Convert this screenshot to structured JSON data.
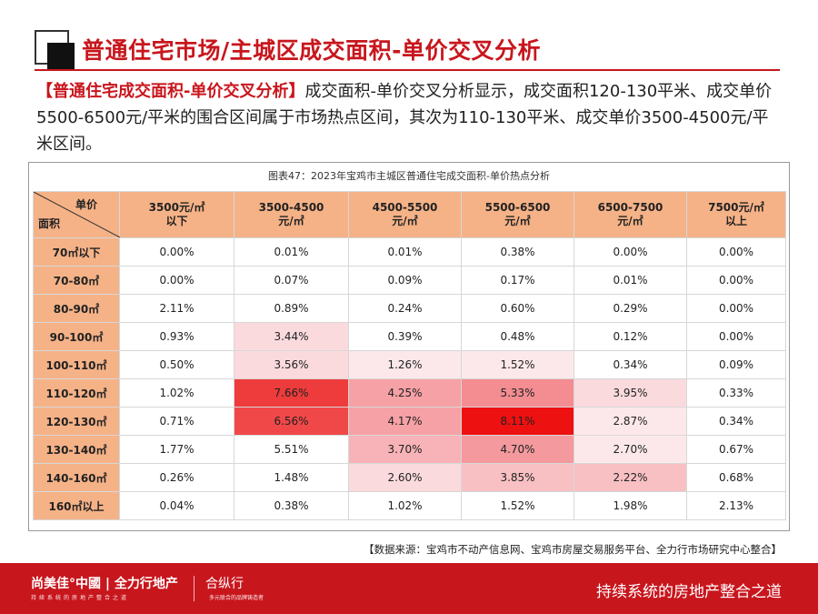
{
  "header": {
    "title": "普通住宅市场/主城区成交面积-单价交叉分析"
  },
  "intro": {
    "tag": "【普通住宅成交面积-单价交叉分析】",
    "text": "成交面积-单价交叉分析显示，成交面积120-130平米、成交单价5500-6500元/平米的围合区间属于市场热点区间，其次为110-130平米、成交单价3500-4500元/平米区间。"
  },
  "table": {
    "caption": "图表47：2023年宝鸡市主城区普通住宅成交面积-单价热点分析",
    "corner_top": "单价",
    "corner_bottom": "面积",
    "columns": [
      [
        "3500元/㎡",
        "以下"
      ],
      [
        "3500-4500",
        "元/㎡"
      ],
      [
        "4500-5500",
        "元/㎡"
      ],
      [
        "5500-6500",
        "元/㎡"
      ],
      [
        "6500-7500",
        "元/㎡"
      ],
      [
        "7500元/㎡",
        "以上"
      ]
    ],
    "rows": [
      {
        "label": "70㎡以下",
        "values": [
          "0.00%",
          "0.01%",
          "0.01%",
          "0.38%",
          "0.00%",
          "0.00%"
        ]
      },
      {
        "label": "70-80㎡",
        "values": [
          "0.00%",
          "0.07%",
          "0.09%",
          "0.17%",
          "0.01%",
          "0.00%"
        ]
      },
      {
        "label": "80-90㎡",
        "values": [
          "2.11%",
          "0.89%",
          "0.24%",
          "0.60%",
          "0.29%",
          "0.00%"
        ]
      },
      {
        "label": "90-100㎡",
        "values": [
          "0.93%",
          "3.44%",
          "0.39%",
          "0.48%",
          "0.12%",
          "0.00%"
        ]
      },
      {
        "label": "100-110㎡",
        "values": [
          "0.50%",
          "3.56%",
          "1.26%",
          "1.52%",
          "0.34%",
          "0.09%"
        ]
      },
      {
        "label": "110-120㎡",
        "values": [
          "1.02%",
          "7.66%",
          "4.25%",
          "5.33%",
          "3.95%",
          "0.33%"
        ]
      },
      {
        "label": "120-130㎡",
        "values": [
          "0.71%",
          "6.56%",
          "4.17%",
          "8.11%",
          "2.87%",
          "0.34%"
        ]
      },
      {
        "label": "130-140㎡",
        "values": [
          "1.77%",
          "5.51%",
          "3.70%",
          "4.70%",
          "2.70%",
          "0.67%"
        ]
      },
      {
        "label": "140-160㎡",
        "values": [
          "0.26%",
          "1.48%",
          "2.60%",
          "3.85%",
          "2.22%",
          "0.68%"
        ]
      },
      {
        "label": "160㎡以上",
        "values": [
          "0.04%",
          "0.38%",
          "1.02%",
          "1.52%",
          "1.98%",
          "2.13%"
        ]
      }
    ],
    "heat_colors": [
      [
        null,
        null,
        null,
        null,
        null,
        null
      ],
      [
        null,
        null,
        null,
        null,
        null,
        null
      ],
      [
        null,
        null,
        null,
        null,
        null,
        null
      ],
      [
        null,
        "#fadadd",
        null,
        null,
        null,
        null
      ],
      [
        null,
        "#fadadd",
        "#fce8ea",
        "#fce8ea",
        null,
        null
      ],
      [
        null,
        "#ee3b3b",
        "#f6a1a5",
        "#f38d91",
        "#fadadd",
        null
      ],
      [
        null,
        "#f04848",
        "#f6a1a5",
        "#ee1111",
        "#fce8ea",
        null
      ],
      [
        null,
        null,
        "#f7b3b7",
        "#f4999d",
        "#fce8ea",
        null
      ],
      [
        null,
        null,
        "#fadadd",
        "#f8c0c3",
        "#f8c0c3",
        null
      ],
      [
        null,
        null,
        null,
        null,
        null,
        null
      ]
    ]
  },
  "source": "【数据来源：宝鸡市不动产信息网、宝鸡市房屋交易服务平台、全力行市场研究中心整合】",
  "footer": {
    "brand": "尚美佳°中國 | 全力行地产",
    "brand_sub": "持续系统的房地产整合之道",
    "brand2": "合纵行",
    "brand2_sub": "多元联合的品牌铸造者",
    "slogan": "持续系统的房地产整合之道"
  },
  "colors": {
    "accent": "#c8161d",
    "header_orange": "#f5b287",
    "corner_yellow": "#f5c518"
  }
}
